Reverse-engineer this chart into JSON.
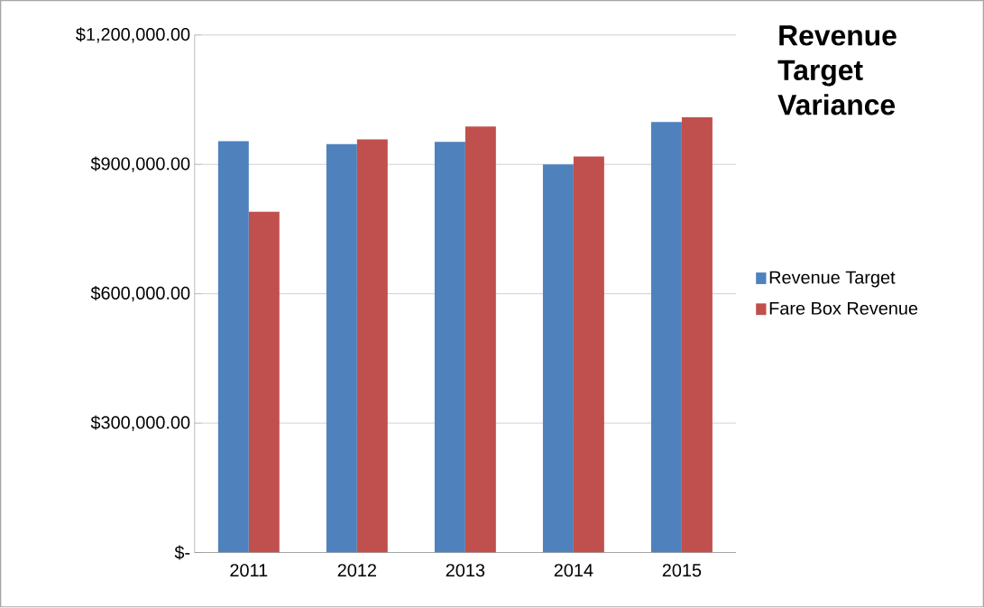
{
  "chart_data": {
    "type": "bar",
    "title": "Revenue Target Variance",
    "categories": [
      "2011",
      "2012",
      "2013",
      "2014",
      "2015"
    ],
    "series": [
      {
        "name": "Revenue Target",
        "color": "#4f81bd",
        "values": [
          954000,
          947000,
          952000,
          900000,
          998000
        ]
      },
      {
        "name": "Fare Box Revenue",
        "color": "#c0504d",
        "values": [
          790000,
          958000,
          988000,
          918000,
          1009000
        ]
      }
    ],
    "ylim": [
      0,
      1200000
    ],
    "yticks": [
      {
        "value": 0,
        "label": "$-"
      },
      {
        "value": 300000,
        "label": "$300,000.00"
      },
      {
        "value": 600000,
        "label": "$600,000.00"
      },
      {
        "value": 900000,
        "label": "$900,000.00"
      },
      {
        "value": 1200000,
        "label": "$1,200,000.00"
      }
    ],
    "grid": "y",
    "legend": "right"
  }
}
